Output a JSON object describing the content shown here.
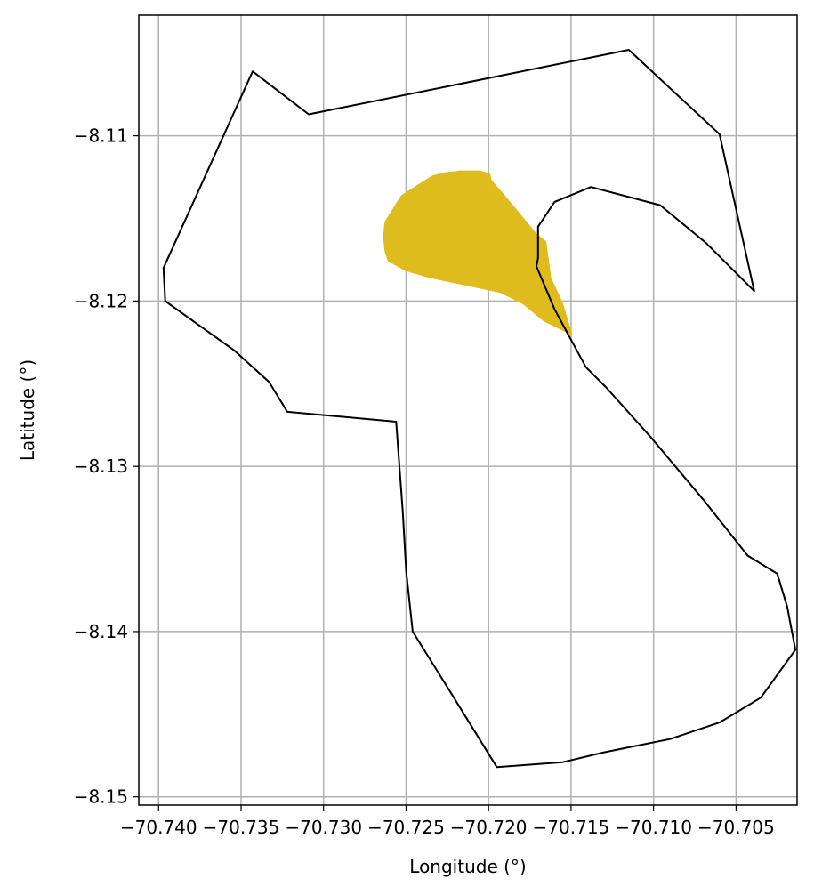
{
  "chart_data": {
    "type": "map",
    "xlabel": "Longitude (°)",
    "ylabel": "Latitude (°)",
    "xlim": [
      -70.7412,
      -70.7013
    ],
    "ylim": [
      -8.1505,
      -8.1027
    ],
    "x_ticks": [
      -70.74,
      -70.735,
      -70.73,
      -70.725,
      -70.72,
      -70.715,
      -70.71,
      -70.705
    ],
    "x_tick_labels": [
      "−70.740",
      "−70.735",
      "−70.730",
      "−70.725",
      "−70.720",
      "−70.715",
      "−70.710",
      "−70.705"
    ],
    "y_ticks": [
      -8.11,
      -8.12,
      -8.13,
      -8.14,
      -8.15
    ],
    "y_tick_labels": [
      "−8.11",
      "−8.12",
      "−8.13",
      "−8.14",
      "−8.15"
    ],
    "grid": true,
    "colors": {
      "outline": "#000000",
      "fill": "#dfbc1e",
      "grid": "#b0b0b0"
    },
    "outline_polygon": [
      [
        -70.7343,
        -8.1061
      ],
      [
        -70.7309,
        -8.1087
      ],
      [
        -70.7115,
        -8.1048
      ],
      [
        -70.706,
        -8.1099
      ],
      [
        -70.7039,
        -8.1194
      ],
      [
        -70.7068,
        -8.1165
      ],
      [
        -70.7096,
        -8.1142
      ],
      [
        -70.7138,
        -8.1131
      ],
      [
        -70.716,
        -8.114
      ],
      [
        -70.717,
        -8.1155
      ],
      [
        -70.717,
        -8.1174
      ],
      [
        -70.7171,
        -8.1179
      ],
      [
        -70.716,
        -8.1205
      ],
      [
        -70.7141,
        -8.124
      ],
      [
        -70.7129,
        -8.1252
      ],
      [
        -70.7102,
        -8.1282
      ],
      [
        -70.707,
        -8.132
      ],
      [
        -70.7043,
        -8.1354
      ],
      [
        -70.7025,
        -8.1365
      ],
      [
        -70.7019,
        -8.1385
      ],
      [
        -70.7014,
        -8.1411
      ],
      [
        -70.7035,
        -8.144
      ],
      [
        -70.706,
        -8.1455
      ],
      [
        -70.709,
        -8.1465
      ],
      [
        -70.7115,
        -8.147
      ],
      [
        -70.713,
        -8.1473
      ],
      [
        -70.7155,
        -8.1479
      ],
      [
        -70.7195,
        -8.1482
      ],
      [
        -70.7221,
        -8.144
      ],
      [
        -70.7246,
        -8.14
      ],
      [
        -70.725,
        -8.1363
      ],
      [
        -70.7252,
        -8.1327
      ],
      [
        -70.7256,
        -8.1273
      ],
      [
        -70.7322,
        -8.1267
      ],
      [
        -70.7333,
        -8.1249
      ],
      [
        -70.7354,
        -8.123
      ],
      [
        -70.7396,
        -8.12
      ],
      [
        -70.7397,
        -8.118
      ]
    ],
    "fill_polygon": [
      [
        -70.7217,
        -8.1121
      ],
      [
        -70.7205,
        -8.1121
      ],
      [
        -70.7199,
        -8.1123
      ],
      [
        -70.7198,
        -8.1127
      ],
      [
        -70.7191,
        -8.1135
      ],
      [
        -70.7181,
        -8.1147
      ],
      [
        -70.7171,
        -8.1159
      ],
      [
        -70.7165,
        -8.1164
      ],
      [
        -70.7162,
        -8.1186
      ],
      [
        -70.7155,
        -8.1201
      ],
      [
        -70.7149,
        -8.1221
      ],
      [
        -70.7167,
        -8.1212
      ],
      [
        -70.7179,
        -8.1202
      ],
      [
        -70.7193,
        -8.1195
      ],
      [
        -70.7212,
        -8.1191
      ],
      [
        -70.7236,
        -8.1186
      ],
      [
        -70.725,
        -8.1182
      ],
      [
        -70.7261,
        -8.1176
      ],
      [
        -70.7263,
        -8.117
      ],
      [
        -70.7264,
        -8.1161
      ],
      [
        -70.7263,
        -8.1152
      ],
      [
        -70.7253,
        -8.1136
      ],
      [
        -70.7242,
        -8.1129
      ],
      [
        -70.7234,
        -8.1124
      ],
      [
        -70.7226,
        -8.1122
      ]
    ]
  }
}
